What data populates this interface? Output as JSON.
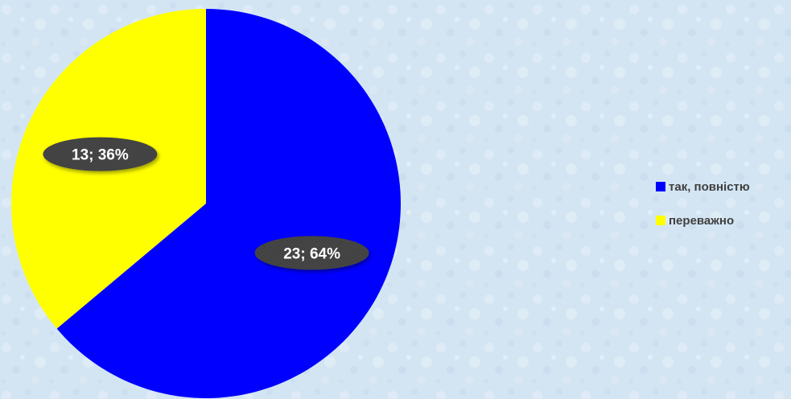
{
  "chart_data": {
    "type": "pie",
    "title": "",
    "start_angle_deg": 0,
    "direction": "clockwise",
    "slices": [
      {
        "name": "так, повністю",
        "value": 23,
        "percent": 64,
        "label": "23; 64%",
        "color": "#0000ff"
      },
      {
        "name": "переважно",
        "value": 13,
        "percent": 36,
        "label": "13; 36%",
        "color": "#ffff00"
      }
    ],
    "legend": {
      "placement": "right",
      "entries": [
        "так, повністю",
        "переважно"
      ]
    },
    "data_label_style": "dark-ellipse-callout"
  },
  "colors": {
    "background": "#d3e5f3",
    "label_bubble": "#404040",
    "label_text": "#ffffff",
    "legend_text": "#404040"
  }
}
